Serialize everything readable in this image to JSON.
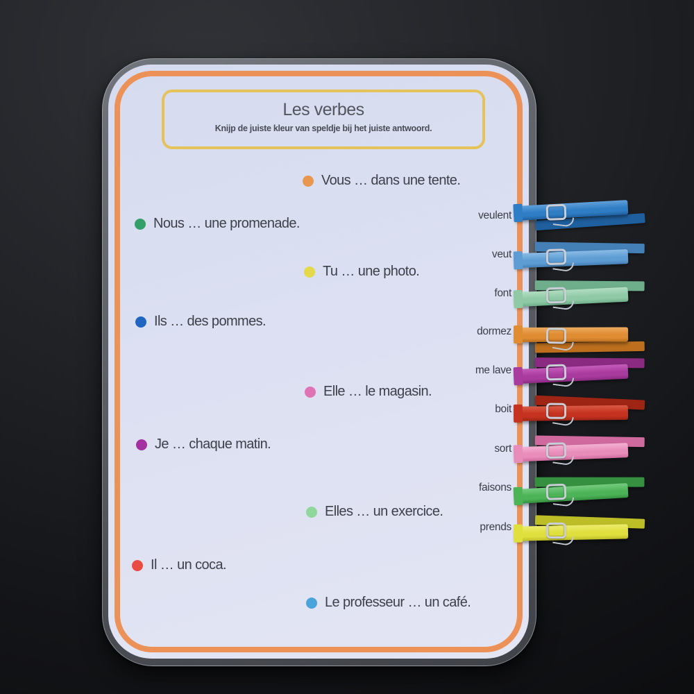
{
  "scene": {
    "background_color": "#17181b",
    "description": "laminated worksheet card photographed on dark table"
  },
  "card": {
    "title": "Les verbes",
    "subtitle": "Knijp de juiste kleur van speldje bij het juiste antwoord.",
    "paper_color": "#dce0f2",
    "page_border_color": "#ec9157",
    "title_box_border_color": "#e5c25a"
  },
  "sentences": [
    {
      "text": "Vous … dans une tente.",
      "dot_name": "orange",
      "dot_color": "#e9964f"
    },
    {
      "text": "Nous … une promenade.",
      "dot_name": "green",
      "dot_color": "#33a06a"
    },
    {
      "text": "Tu … une photo.",
      "dot_name": "yellow",
      "dot_color": "#e3d94a"
    },
    {
      "text": "Ils … des pommes.",
      "dot_name": "blue",
      "dot_color": "#1f66c0"
    },
    {
      "text": "Elle … le magasin.",
      "dot_name": "pink",
      "dot_color": "#df74b5"
    },
    {
      "text": "Je … chaque matin.",
      "dot_name": "purple",
      "dot_color": "#a3319f"
    },
    {
      "text": "Elles … un exercice.",
      "dot_name": "light-green",
      "dot_color": "#90d79c"
    },
    {
      "text": "Il … un coca.",
      "dot_name": "red",
      "dot_color": "#ea4b43"
    },
    {
      "text": "Le professeur … un café.",
      "dot_name": "sky-blue",
      "dot_color": "#4ba3dc"
    }
  ],
  "answers": [
    {
      "label": "veulent",
      "pin_name": "dark-blue-clothespin",
      "pin_color": "#2f7dc4",
      "pin_color_dark": "#1f5f9e",
      "pin_color_light": "#61a0da"
    },
    {
      "label": "veut",
      "pin_name": "light-blue-clothespin",
      "pin_color": "#5e9dd4",
      "pin_color_dark": "#447fb5",
      "pin_color_light": "#8abce5"
    },
    {
      "label": "font",
      "pin_name": "mint-green-clothespin",
      "pin_color": "#8fc9a6",
      "pin_color_dark": "#6fae8a",
      "pin_color_light": "#b2ddc2"
    },
    {
      "label": "dormez",
      "pin_name": "orange-clothespin",
      "pin_color": "#df8c33",
      "pin_color_dark": "#bd6f1e",
      "pin_color_light": "#edaa5e"
    },
    {
      "label": "me lave",
      "pin_name": "purple-clothespin",
      "pin_color": "#a93b9e",
      "pin_color_dark": "#8a2a81",
      "pin_color_light": "#c45cba"
    },
    {
      "label": "boit",
      "pin_name": "red-clothespin",
      "pin_color": "#c5321f",
      "pin_color_dark": "#9e2414",
      "pin_color_light": "#d95a45"
    },
    {
      "label": "sort",
      "pin_name": "pink-clothespin",
      "pin_color": "#e88cba",
      "pin_color_dark": "#d06a9e",
      "pin_color_light": "#f3b0d1"
    },
    {
      "label": "faisons",
      "pin_name": "green-clothespin",
      "pin_color": "#4cb357",
      "pin_color_dark": "#35913f",
      "pin_color_light": "#76cb80"
    },
    {
      "label": "prends",
      "pin_name": "yellow-clothespin",
      "pin_color": "#dfdf3d",
      "pin_color_dark": "#bdbd28",
      "pin_color_light": "#ecec6e"
    }
  ],
  "pin_spring_color": "#c9ced6"
}
